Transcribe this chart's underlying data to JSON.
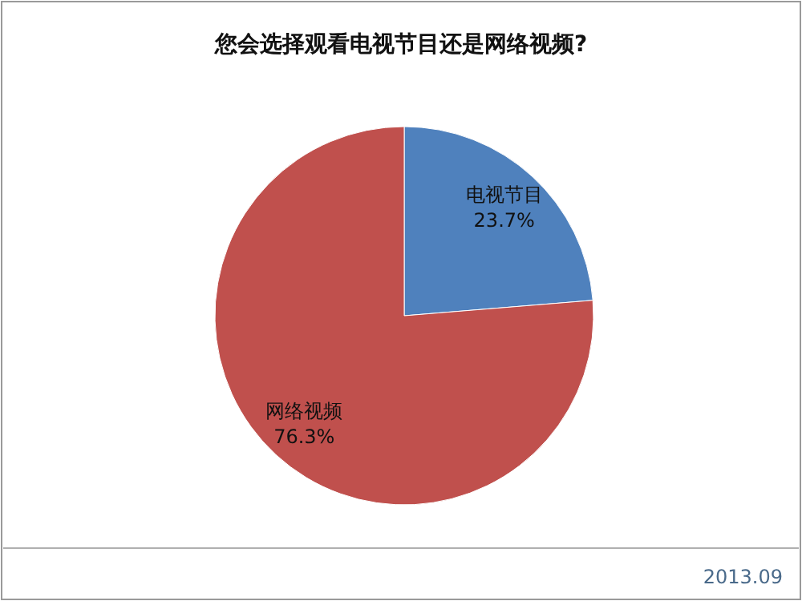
{
  "chart_data": {
    "type": "pie",
    "title": "您会选择观看电视节目还是网络视频?",
    "categories": [
      "电视节目",
      "网络视频"
    ],
    "values": [
      23.7,
      76.3
    ],
    "colors": [
      "#4f81bd",
      "#c0504d"
    ],
    "value_labels": [
      "23.7%",
      "76.3%"
    ],
    "annotations": [
      "2013.09"
    ]
  }
}
